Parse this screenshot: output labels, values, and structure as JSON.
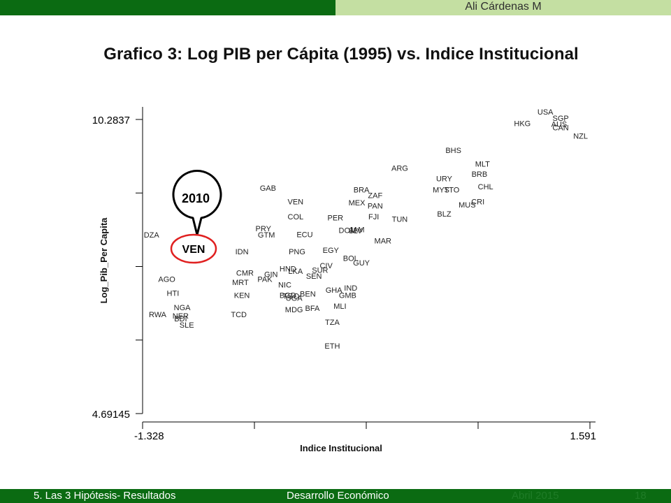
{
  "header": {
    "author": "Ali Cárdenas M"
  },
  "title": "Grafico 3: Log  PIB per Cápita (1995) vs. Indice Institucional",
  "callout": {
    "year": "2010",
    "label": "VEN"
  },
  "footer": {
    "section": "5. Las  3 Hipótesis- Resultados",
    "course": "Desarrollo Económico",
    "date": "Abril 2015",
    "page": "18"
  },
  "colors": {
    "header_dark": "#0b6b12",
    "header_light": "#c4dfa2",
    "callout_ring": "#e02020"
  },
  "chart_data": {
    "type": "scatter",
    "xlabel": "Indice Institucional",
    "ylabel": "Log_Pib_Per Capita",
    "xlim": [
      -1.328,
      1.591
    ],
    "ylim": [
      4.69145,
      10.2837
    ],
    "xtick_labels": [
      "-1.328",
      "1.591"
    ],
    "ytick_labels": [
      "10.2837",
      "4.69145"
    ],
    "grid": false,
    "points": [
      {
        "label": "USA",
        "x": 1.3,
        "y": 10.43
      },
      {
        "label": "SGP",
        "x": 1.4,
        "y": 10.31
      },
      {
        "label": "AUS",
        "x": 1.39,
        "y": 10.2
      },
      {
        "label": "CAN",
        "x": 1.4,
        "y": 10.13
      },
      {
        "label": "HKG",
        "x": 1.15,
        "y": 10.21
      },
      {
        "label": "NZL",
        "x": 1.53,
        "y": 9.97
      },
      {
        "label": "BHS",
        "x": 0.7,
        "y": 9.7
      },
      {
        "label": "MLT",
        "x": 0.89,
        "y": 9.44
      },
      {
        "label": "BRB",
        "x": 0.87,
        "y": 9.25
      },
      {
        "label": "ARG",
        "x": 0.35,
        "y": 9.36
      },
      {
        "label": "URY",
        "x": 0.64,
        "y": 9.16
      },
      {
        "label": "CHL",
        "x": 0.91,
        "y": 9.01
      },
      {
        "label": "MYS",
        "x": 0.62,
        "y": 8.95
      },
      {
        "label": "TTO",
        "x": 0.69,
        "y": 8.95
      },
      {
        "label": "BRA",
        "x": 0.1,
        "y": 8.95
      },
      {
        "label": "ZAF",
        "x": 0.19,
        "y": 8.84
      },
      {
        "label": "CRI",
        "x": 0.86,
        "y": 8.72
      },
      {
        "label": "MUS",
        "x": 0.79,
        "y": 8.66
      },
      {
        "label": "MEX",
        "x": 0.07,
        "y": 8.7
      },
      {
        "label": "PAN",
        "x": 0.19,
        "y": 8.64
      },
      {
        "label": "GAB",
        "x": -0.51,
        "y": 8.98
      },
      {
        "label": "VEN",
        "x": -0.33,
        "y": 8.72
      },
      {
        "label": "BLZ",
        "x": 0.64,
        "y": 8.49
      },
      {
        "label": "FJI",
        "x": 0.18,
        "y": 8.44
      },
      {
        "label": "COL",
        "x": -0.33,
        "y": 8.44
      },
      {
        "label": "PER",
        "x": -0.07,
        "y": 8.42
      },
      {
        "label": "TUN",
        "x": 0.35,
        "y": 8.39
      },
      {
        "label": "PRY",
        "x": -0.54,
        "y": 8.21
      },
      {
        "label": "DOM",
        "x": 0.01,
        "y": 8.18
      },
      {
        "label": "JAM",
        "x": 0.07,
        "y": 8.19
      },
      {
        "label": "SLV",
        "x": 0.06,
        "y": 8.17
      },
      {
        "label": "GTM",
        "x": -0.52,
        "y": 8.09
      },
      {
        "label": "ECU",
        "x": -0.27,
        "y": 8.1
      },
      {
        "label": "DZA",
        "x": -1.27,
        "y": 8.09
      },
      {
        "label": "MAR",
        "x": 0.24,
        "y": 7.98
      },
      {
        "label": "IDN",
        "x": -0.68,
        "y": 7.77
      },
      {
        "label": "PNG",
        "x": -0.32,
        "y": 7.77
      },
      {
        "label": "EGY",
        "x": -0.1,
        "y": 7.8
      },
      {
        "label": "COG",
        "x": -0.97,
        "y": 7.66
      },
      {
        "label": "BOL",
        "x": 0.03,
        "y": 7.65
      },
      {
        "label": "GUY",
        "x": 0.1,
        "y": 7.56
      },
      {
        "label": "CIV",
        "x": -0.13,
        "y": 7.51
      },
      {
        "label": "HND",
        "x": -0.38,
        "y": 7.45
      },
      {
        "label": "SUR",
        "x": -0.17,
        "y": 7.42
      },
      {
        "label": "LKA",
        "x": -0.33,
        "y": 7.4
      },
      {
        "label": "CMR",
        "x": -0.66,
        "y": 7.37
      },
      {
        "label": "GIN",
        "x": -0.49,
        "y": 7.34
      },
      {
        "label": "SEN",
        "x": -0.21,
        "y": 7.31
      },
      {
        "label": "PAK",
        "x": -0.53,
        "y": 7.25
      },
      {
        "label": "AGO",
        "x": -1.17,
        "y": 7.25
      },
      {
        "label": "MRT",
        "x": -0.69,
        "y": 7.19
      },
      {
        "label": "NIC",
        "x": -0.4,
        "y": 7.14
      },
      {
        "label": "GHA",
        "x": -0.08,
        "y": 7.04
      },
      {
        "label": "IND",
        "x": 0.03,
        "y": 7.08
      },
      {
        "label": "HTI",
        "x": -1.13,
        "y": 6.98
      },
      {
        "label": "KEN",
        "x": -0.68,
        "y": 6.94
      },
      {
        "label": "BEN",
        "x": -0.25,
        "y": 6.97
      },
      {
        "label": "GMB",
        "x": 0.01,
        "y": 6.94
      },
      {
        "label": "BGD",
        "x": -0.38,
        "y": 6.94
      },
      {
        "label": "TGO",
        "x": -0.36,
        "y": 6.93
      },
      {
        "label": "UGA",
        "x": -0.34,
        "y": 6.89
      },
      {
        "label": "MLI",
        "x": -0.04,
        "y": 6.74
      },
      {
        "label": "NGA",
        "x": -1.07,
        "y": 6.71
      },
      {
        "label": "BFA",
        "x": -0.22,
        "y": 6.7
      },
      {
        "label": "MDG",
        "x": -0.34,
        "y": 6.67
      },
      {
        "label": "RWA",
        "x": -1.23,
        "y": 6.58
      },
      {
        "label": "TCD",
        "x": -0.7,
        "y": 6.58
      },
      {
        "label": "NER",
        "x": -1.08,
        "y": 6.55
      },
      {
        "label": "BDI",
        "x": -1.08,
        "y": 6.5
      },
      {
        "label": "TZA",
        "x": -0.09,
        "y": 6.43
      },
      {
        "label": "SLE",
        "x": -1.04,
        "y": 6.38
      },
      {
        "label": "ETH",
        "x": -0.09,
        "y": 5.98
      }
    ]
  }
}
